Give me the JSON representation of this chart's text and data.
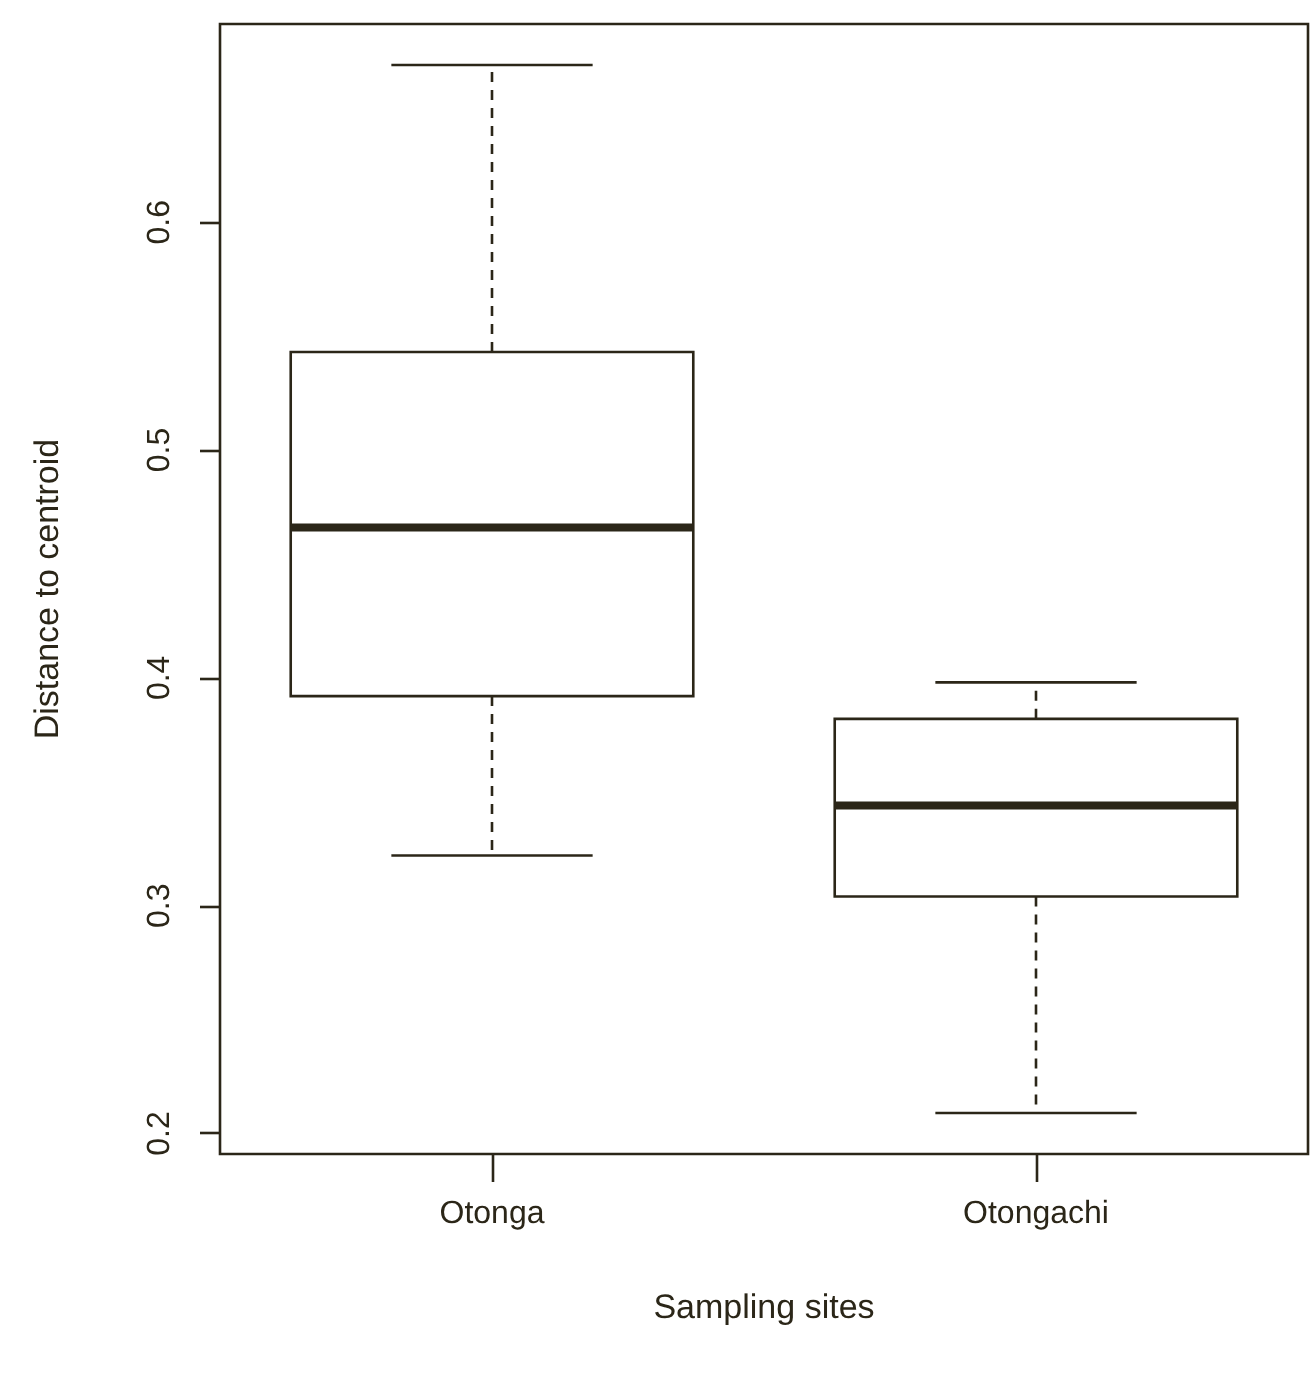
{
  "chart_data": {
    "type": "box",
    "xlabel": "Sampling sites",
    "ylabel": "Distance to centroid",
    "categories": [
      "Otonga",
      "Otongachi"
    ],
    "boxes": [
      {
        "low": 0.322,
        "q1": 0.392,
        "median": 0.466,
        "q3": 0.543,
        "high": 0.669
      },
      {
        "low": 0.209,
        "q1": 0.304,
        "median": 0.344,
        "q3": 0.382,
        "high": 0.398
      }
    ],
    "color": "#2b2618",
    "ylim": [
      0.191,
      0.687
    ],
    "yticks": [
      0.2,
      0.3,
      0.4,
      0.5,
      0.6
    ],
    "grid": false
  }
}
